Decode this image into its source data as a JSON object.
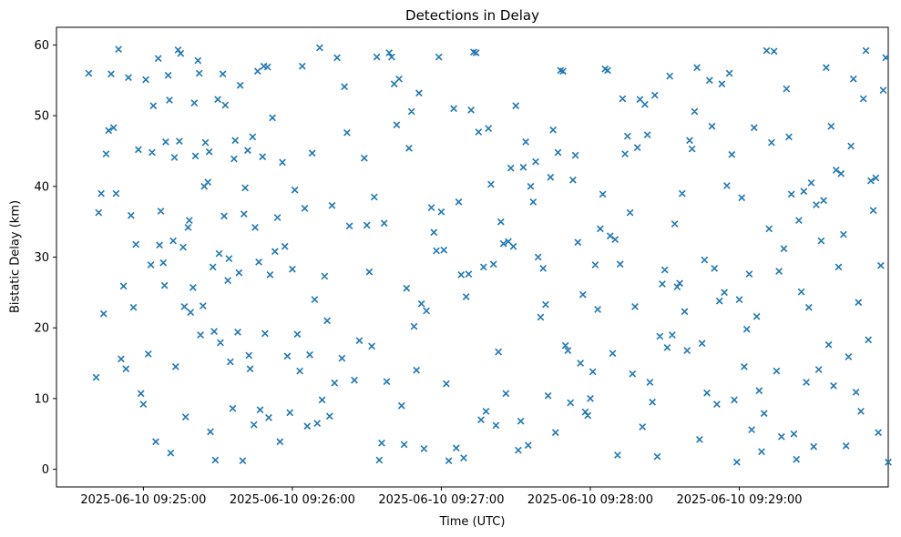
{
  "chart_data": {
    "type": "scatter",
    "title": "Detections in Delay",
    "xlabel": "Time (UTC)",
    "ylabel": "Bistatic Delay (km)",
    "marker": "x",
    "marker_color": "#1f77b4",
    "background_color": "#ffffff",
    "axis_color": "#000000",
    "grid": false,
    "legend": null,
    "x_axis": {
      "unit": "seconds since 2025-06-10 09:24:30 UTC",
      "lim": [
        -5,
        330
      ],
      "ticks": [
        {
          "value": 30,
          "label": "2025-06-10 09:25:00"
        },
        {
          "value": 90,
          "label": "2025-06-10 09:26:00"
        },
        {
          "value": 150,
          "label": "2025-06-10 09:27:00"
        },
        {
          "value": 210,
          "label": "2025-06-10 09:28:00"
        },
        {
          "value": 270,
          "label": "2025-06-10 09:29:00"
        }
      ]
    },
    "y_axis": {
      "lim": [
        -2.5,
        62.5
      ],
      "ticks": [
        0,
        10,
        20,
        30,
        40,
        50,
        60
      ]
    },
    "points": [
      [
        8,
        56
      ],
      [
        11,
        13
      ],
      [
        12,
        36.3
      ],
      [
        13,
        39
      ],
      [
        14,
        22
      ],
      [
        15,
        44.6
      ],
      [
        16,
        47.9
      ],
      [
        17,
        55.9
      ],
      [
        18,
        48.3
      ],
      [
        19,
        39
      ],
      [
        20,
        59.4
      ],
      [
        21,
        15.6
      ],
      [
        22,
        25.9
      ],
      [
        23,
        14.2
      ],
      [
        24,
        55.4
      ],
      [
        25,
        35.9
      ],
      [
        26,
        22.9
      ],
      [
        27,
        31.8
      ],
      [
        28,
        45.2
      ],
      [
        29,
        10.7
      ],
      [
        30,
        9.2
      ],
      [
        31,
        55.1
      ],
      [
        32,
        16.3
      ],
      [
        33,
        28.9
      ],
      [
        33.5,
        44.8
      ],
      [
        34,
        51.4
      ],
      [
        35,
        3.9
      ],
      [
        36,
        58.1
      ],
      [
        36.5,
        31.7
      ],
      [
        37,
        36.5
      ],
      [
        38,
        29.2
      ],
      [
        38.5,
        26
      ],
      [
        39,
        46.3
      ],
      [
        40,
        55.7
      ],
      [
        40.5,
        52.2
      ],
      [
        41,
        2.3
      ],
      [
        42,
        32.3
      ],
      [
        42.5,
        44.1
      ],
      [
        43,
        14.5
      ],
      [
        44,
        59.3
      ],
      [
        44.5,
        46.4
      ],
      [
        45,
        58.8
      ],
      [
        46,
        31.4
      ],
      [
        46.5,
        23
      ],
      [
        47,
        7.4
      ],
      [
        48,
        34.2
      ],
      [
        48.5,
        35.2
      ],
      [
        49,
        22.2
      ],
      [
        50,
        25.7
      ],
      [
        50.5,
        51.8
      ],
      [
        51,
        44.3
      ],
      [
        52,
        57.8
      ],
      [
        52.5,
        56
      ],
      [
        53,
        19
      ],
      [
        54,
        23.1
      ],
      [
        54.5,
        40
      ],
      [
        55,
        46.2
      ],
      [
        56,
        40.6
      ],
      [
        56.5,
        44.9
      ],
      [
        57,
        5.3
      ],
      [
        58,
        28.6
      ],
      [
        58.5,
        19.5
      ],
      [
        59,
        1.3
      ],
      [
        60,
        52.3
      ],
      [
        60.5,
        30.5
      ],
      [
        61,
        17.9
      ],
      [
        62,
        55.9
      ],
      [
        62.5,
        35.8
      ],
      [
        63,
        51.5
      ],
      [
        64,
        26.7
      ],
      [
        64.5,
        29.8
      ],
      [
        65,
        15.2
      ],
      [
        66,
        8.6
      ],
      [
        66.5,
        43.9
      ],
      [
        67,
        46.5
      ],
      [
        68,
        19.4
      ],
      [
        68.5,
        27.8
      ],
      [
        69,
        54.3
      ],
      [
        70,
        1.2
      ],
      [
        70.5,
        36.1
      ],
      [
        71,
        39.8
      ],
      [
        72,
        45.1
      ],
      [
        72.5,
        16.1
      ],
      [
        73,
        14.2
      ],
      [
        74,
        47
      ],
      [
        74.5,
        6.3
      ],
      [
        75,
        34.2
      ],
      [
        76,
        56.3
      ],
      [
        76.5,
        29.3
      ],
      [
        77,
        8.4
      ],
      [
        78,
        44.2
      ],
      [
        78.5,
        57
      ],
      [
        79,
        19.2
      ],
      [
        80,
        56.9
      ],
      [
        80.5,
        7.3
      ],
      [
        81,
        27.5
      ],
      [
        82,
        49.7
      ],
      [
        83,
        30.8
      ],
      [
        84,
        35.6
      ],
      [
        85,
        3.9
      ],
      [
        86,
        43.4
      ],
      [
        87,
        31.5
      ],
      [
        88,
        16
      ],
      [
        89,
        8
      ],
      [
        90,
        28.3
      ],
      [
        91,
        39.5
      ],
      [
        92,
        19.1
      ],
      [
        93,
        13.9
      ],
      [
        94,
        57
      ],
      [
        95,
        36.9
      ],
      [
        96,
        6.1
      ],
      [
        97,
        16.2
      ],
      [
        98,
        44.7
      ],
      [
        99,
        24
      ],
      [
        100,
        6.5
      ],
      [
        101,
        59.6
      ],
      [
        102,
        9.8
      ],
      [
        103,
        27.3
      ],
      [
        104,
        21
      ],
      [
        105,
        7.5
      ],
      [
        106,
        37.3
      ],
      [
        107,
        12.2
      ],
      [
        108,
        58.2
      ],
      [
        110,
        15.7
      ],
      [
        111,
        54.1
      ],
      [
        112,
        47.6
      ],
      [
        113,
        34.4
      ],
      [
        115,
        12.6
      ],
      [
        117,
        18.2
      ],
      [
        119,
        44
      ],
      [
        120,
        34.5
      ],
      [
        121,
        27.9
      ],
      [
        122,
        17.4
      ],
      [
        123,
        38.5
      ],
      [
        124,
        58.3
      ],
      [
        125,
        1.3
      ],
      [
        126,
        3.7
      ],
      [
        127,
        34.8
      ],
      [
        128,
        12.4
      ],
      [
        129,
        58.9
      ],
      [
        130,
        58.3
      ],
      [
        131,
        54.5
      ],
      [
        132,
        48.7
      ],
      [
        133,
        55.2
      ],
      [
        134,
        9
      ],
      [
        135,
        3.5
      ],
      [
        136,
        25.6
      ],
      [
        137,
        45.4
      ],
      [
        138,
        50.6
      ],
      [
        139,
        20.2
      ],
      [
        140,
        14
      ],
      [
        141,
        53.2
      ],
      [
        142,
        23.4
      ],
      [
        143,
        2.9
      ],
      [
        144,
        22.4
      ],
      [
        146,
        37
      ],
      [
        147,
        33.5
      ],
      [
        148,
        30.9
      ],
      [
        149,
        58.3
      ],
      [
        150,
        36.4
      ],
      [
        151,
        31
      ],
      [
        152,
        12.1
      ],
      [
        153,
        1.2
      ],
      [
        155,
        51
      ],
      [
        156,
        3
      ],
      [
        157,
        37.8
      ],
      [
        158,
        27.5
      ],
      [
        159,
        1.6
      ],
      [
        160,
        24.4
      ],
      [
        161,
        27.6
      ],
      [
        162,
        50.8
      ],
      [
        163,
        59
      ],
      [
        164,
        58.9
      ],
      [
        165,
        47.7
      ],
      [
        166,
        7
      ],
      [
        167,
        28.6
      ],
      [
        168,
        8.2
      ],
      [
        169,
        48.2
      ],
      [
        170,
        40.3
      ],
      [
        171,
        29
      ],
      [
        172,
        6.2
      ],
      [
        173,
        16.6
      ],
      [
        174,
        35
      ],
      [
        175,
        31.9
      ],
      [
        176,
        10.7
      ],
      [
        177,
        32.2
      ],
      [
        178,
        42.6
      ],
      [
        179,
        31.5
      ],
      [
        180,
        51.4
      ],
      [
        181,
        2.7
      ],
      [
        182,
        6.8
      ],
      [
        183,
        42.7
      ],
      [
        184,
        46.3
      ],
      [
        185,
        3.4
      ],
      [
        186,
        40
      ],
      [
        187,
        37.8
      ],
      [
        188,
        43.5
      ],
      [
        189,
        30
      ],
      [
        190,
        21.5
      ],
      [
        191,
        28.4
      ],
      [
        192,
        23.3
      ],
      [
        193,
        10.4
      ],
      [
        194,
        41.3
      ],
      [
        195,
        48
      ],
      [
        196,
        5.2
      ],
      [
        197,
        44.8
      ],
      [
        198,
        56.4
      ],
      [
        199,
        56.3
      ],
      [
        200,
        17.5
      ],
      [
        201,
        16.8
      ],
      [
        202,
        9.4
      ],
      [
        203,
        40.9
      ],
      [
        204,
        44.4
      ],
      [
        205,
        32.1
      ],
      [
        206,
        15
      ],
      [
        207,
        24.7
      ],
      [
        208,
        8.1
      ],
      [
        209,
        7.6
      ],
      [
        210,
        10
      ],
      [
        211,
        13.8
      ],
      [
        212,
        28.9
      ],
      [
        213,
        22.6
      ],
      [
        214,
        34
      ],
      [
        215,
        38.9
      ],
      [
        216,
        56.6
      ],
      [
        217,
        56.4
      ],
      [
        218,
        33
      ],
      [
        219,
        16.4
      ],
      [
        220,
        32.5
      ],
      [
        221,
        2
      ],
      [
        222,
        29
      ],
      [
        223,
        52.4
      ],
      [
        224,
        44.6
      ],
      [
        225,
        47.1
      ],
      [
        226,
        36.3
      ],
      [
        227,
        13.5
      ],
      [
        228,
        23
      ],
      [
        229,
        45.5
      ],
      [
        230,
        52.3
      ],
      [
        231,
        6
      ],
      [
        232,
        51.6
      ],
      [
        233,
        47.3
      ],
      [
        234,
        12.3
      ],
      [
        235,
        9.5
      ],
      [
        236,
        52.9
      ],
      [
        237,
        1.8
      ],
      [
        238,
        18.8
      ],
      [
        239,
        26.2
      ],
      [
        240,
        28.2
      ],
      [
        241,
        17.2
      ],
      [
        242,
        55.6
      ],
      [
        243,
        19
      ],
      [
        244,
        34.7
      ],
      [
        245,
        25.8
      ],
      [
        246,
        26.3
      ],
      [
        247,
        39
      ],
      [
        248,
        22.3
      ],
      [
        249,
        16.8
      ],
      [
        250,
        46.5
      ],
      [
        251,
        45.3
      ],
      [
        252,
        50.6
      ],
      [
        253,
        56.8
      ],
      [
        254,
        4.2
      ],
      [
        255,
        17.8
      ],
      [
        256,
        29.6
      ],
      [
        257,
        10.8
      ],
      [
        258,
        55
      ],
      [
        259,
        48.5
      ],
      [
        260,
        28.4
      ],
      [
        261,
        9.2
      ],
      [
        262,
        23.8
      ],
      [
        263,
        54.5
      ],
      [
        264,
        25
      ],
      [
        265,
        40.1
      ],
      [
        266,
        56
      ],
      [
        267,
        44.5
      ],
      [
        268,
        9.8
      ],
      [
        269,
        1
      ],
      [
        270,
        24
      ],
      [
        271,
        38.4
      ],
      [
        272,
        14.5
      ],
      [
        273,
        19.8
      ],
      [
        274,
        27.6
      ],
      [
        275,
        5.6
      ],
      [
        276,
        48.3
      ],
      [
        277,
        21.6
      ],
      [
        278,
        11.1
      ],
      [
        279,
        2.5
      ],
      [
        280,
        7.9
      ],
      [
        281,
        59.2
      ],
      [
        282,
        34
      ],
      [
        283,
        46.2
      ],
      [
        284,
        59.1
      ],
      [
        285,
        13.9
      ],
      [
        286,
        28
      ],
      [
        287,
        4.6
      ],
      [
        288,
        31.2
      ],
      [
        289,
        53.8
      ],
      [
        290,
        47
      ],
      [
        291,
        38.9
      ],
      [
        292,
        5
      ],
      [
        293,
        1.4
      ],
      [
        294,
        35.2
      ],
      [
        295,
        25.1
      ],
      [
        296,
        39.3
      ],
      [
        297,
        12.3
      ],
      [
        298,
        22.9
      ],
      [
        299,
        40.5
      ],
      [
        300,
        3.2
      ],
      [
        301,
        37.4
      ],
      [
        302,
        14.1
      ],
      [
        303,
        32.3
      ],
      [
        304,
        38
      ],
      [
        305,
        56.8
      ],
      [
        306,
        17.6
      ],
      [
        307,
        48.5
      ],
      [
        308,
        11.8
      ],
      [
        309,
        42.3
      ],
      [
        310,
        28.6
      ],
      [
        311,
        41.8
      ],
      [
        312,
        33.2
      ],
      [
        313,
        3.3
      ],
      [
        314,
        15.9
      ],
      [
        315,
        45.7
      ],
      [
        316,
        55.2
      ],
      [
        317,
        10.9
      ],
      [
        318,
        23.6
      ],
      [
        319,
        8.2
      ],
      [
        320,
        52.4
      ],
      [
        321,
        59.2
      ],
      [
        322,
        18.3
      ],
      [
        323,
        40.8
      ],
      [
        324,
        36.6
      ],
      [
        325,
        41.2
      ],
      [
        326,
        5.2
      ],
      [
        327,
        28.8
      ],
      [
        328,
        53.6
      ],
      [
        329,
        58.2
      ],
      [
        330,
        1
      ]
    ]
  }
}
